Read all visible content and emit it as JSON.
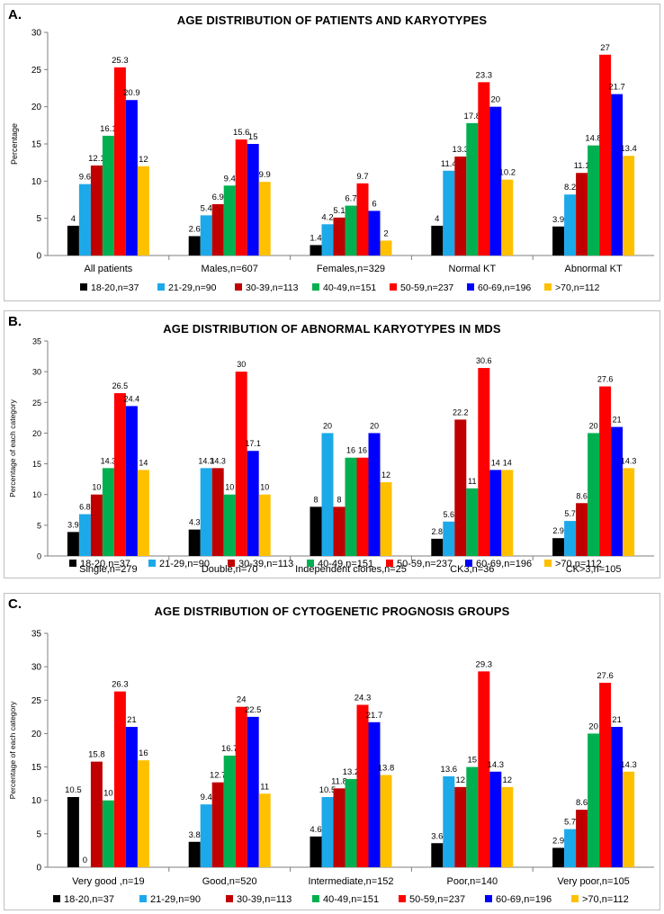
{
  "legend": [
    {
      "label": "18-20,n=37",
      "color": "#000000"
    },
    {
      "label": "21-29,n=90",
      "color": "#1CA9E9"
    },
    {
      "label": "30-39,n=113",
      "color": "#C00000"
    },
    {
      "label": "40-49,n=151",
      "color": "#00B050"
    },
    {
      "label": "50-59,n=237",
      "color": "#FF0000"
    },
    {
      "label": "60-69,n=196",
      "color": "#0000FF"
    },
    {
      "label": ">70,n=112",
      "color": "#FFC000"
    }
  ],
  "chart_data": [
    {
      "panel": "A.",
      "type": "bar",
      "title": "AGE DISTRIBUTION OF PATIENTS AND KARYOTYPES",
      "ylabel": "Percentage",
      "ylim": [
        0,
        30
      ],
      "yticks": [
        0,
        5,
        10,
        15,
        20,
        25,
        30
      ],
      "categories": [
        "All patients",
        "Males,n=607",
        "Females,n=329",
        "Normal KT",
        "Abnormal KT"
      ],
      "series": [
        {
          "name": "18-20,n=37",
          "values": [
            4,
            2.6,
            1.4,
            4,
            3.9
          ],
          "labels": [
            "4",
            "2.6",
            "1.4",
            "4",
            "3.9"
          ]
        },
        {
          "name": "21-29,n=90",
          "values": [
            9.6,
            5.4,
            4.2,
            11.4,
            8.2
          ],
          "labels": [
            "9.6",
            "5.4",
            "4.2",
            "11.4",
            "8.2"
          ]
        },
        {
          "name": "30-39,n=113",
          "values": [
            12.1,
            6.9,
            5.1,
            13.3,
            11.1
          ],
          "labels": [
            "12.1",
            "6.9",
            "5.1",
            "13.3",
            "11.1"
          ]
        },
        {
          "name": "40-49,n=151",
          "values": [
            16.1,
            9.4,
            6.7,
            17.8,
            14.8
          ],
          "labels": [
            "16.1",
            "9.4",
            "6.7",
            "17.8",
            "14.8"
          ]
        },
        {
          "name": "50-59,n=237",
          "values": [
            25.3,
            15.6,
            9.7,
            23.3,
            27
          ],
          "labels": [
            "25.3",
            "15.6",
            "9.7",
            "23.3",
            "27"
          ]
        },
        {
          "name": "60-69,n=196",
          "values": [
            20.9,
            15,
            6,
            20,
            21.7
          ],
          "labels": [
            "20.9",
            "15",
            "6",
            "20",
            "21.7"
          ]
        },
        {
          "name": ">70,n=112",
          "values": [
            12,
            9.9,
            2,
            10.2,
            13.4
          ],
          "labels": [
            "12",
            "9.9",
            "2",
            "10.2",
            "13.4"
          ]
        }
      ]
    },
    {
      "panel": "B.",
      "type": "bar",
      "title": "AGE DISTRIBUTION OF ABNORMAL KARYOTYPES IN MDS",
      "ylabel": "Percentage of each category",
      "ylim": [
        0,
        35
      ],
      "yticks": [
        0,
        5,
        10,
        15,
        20,
        25,
        30,
        35
      ],
      "categories": [
        "Single,n=279",
        "Double,n=70",
        "Independent clones,n=25",
        "CK3,n=36",
        "CK>3,n=105"
      ],
      "series": [
        {
          "name": "18-20,n=37",
          "values": [
            3.9,
            4.3,
            8,
            2.8,
            2.9
          ],
          "labels": [
            "3.9",
            "4.3",
            "8",
            "2.8",
            "2.9"
          ]
        },
        {
          "name": "21-29,n=90",
          "values": [
            6.8,
            14.3,
            20,
            5.6,
            5.7
          ],
          "labels": [
            "6.8",
            "14.3",
            "20",
            "5.6",
            "5.7"
          ]
        },
        {
          "name": "30-39,n=113",
          "values": [
            10,
            14.3,
            8,
            22.2,
            8.6
          ],
          "labels": [
            "10",
            "14.3",
            "8",
            "22.2",
            "8.6"
          ]
        },
        {
          "name": "40-49,n=151",
          "values": [
            14.3,
            10,
            16,
            11,
            20
          ],
          "labels": [
            "14.3",
            "10",
            "16",
            "11",
            "20"
          ]
        },
        {
          "name": "50-59,n=237",
          "values": [
            26.5,
            30,
            16,
            30.6,
            27.6
          ],
          "labels": [
            "26.5",
            "30",
            "16",
            "30.6",
            "27.6"
          ]
        },
        {
          "name": "60-69,n=196",
          "values": [
            24.4,
            17.1,
            20,
            14,
            21
          ],
          "labels": [
            "24.4",
            "17.1",
            "20",
            "14",
            "21"
          ]
        },
        {
          "name": ">70,n=112",
          "values": [
            14,
            10,
            12,
            14,
            14.3
          ],
          "labels": [
            "14",
            "10",
            "12",
            "14",
            "14.3"
          ]
        }
      ]
    },
    {
      "panel": "C.",
      "type": "bar",
      "title": "AGE DISTRIBUTION OF CYTOGENETIC PROGNOSIS GROUPS",
      "ylabel": "Percentage of each category",
      "ylim": [
        0,
        35
      ],
      "yticks": [
        0,
        5,
        10,
        15,
        20,
        25,
        30,
        35
      ],
      "categories": [
        "Very good ,n=19",
        "Good,n=520",
        "Intermediate,n=152",
        "Poor,n=140",
        "Very poor,n=105"
      ],
      "series": [
        {
          "name": "18-20,n=37",
          "values": [
            10.5,
            3.8,
            4.6,
            3.6,
            2.9
          ],
          "labels": [
            "10.5",
            "3.8",
            "4.6",
            "3.6",
            "2.9"
          ]
        },
        {
          "name": "21-29,n=90",
          "values": [
            0,
            9.4,
            10.5,
            13.6,
            5.7
          ],
          "labels": [
            "0",
            "9.4",
            "10.5",
            "13.6",
            "5.7"
          ]
        },
        {
          "name": "30-39,n=113",
          "values": [
            15.8,
            12.7,
            11.8,
            12,
            8.6
          ],
          "labels": [
            "15.8",
            "12.7",
            "11.8",
            "12",
            "8.6"
          ]
        },
        {
          "name": "40-49,n=151",
          "values": [
            10,
            16.7,
            13.2,
            15,
            20
          ],
          "labels": [
            "10",
            "16.7",
            "13.2",
            "15",
            "20"
          ]
        },
        {
          "name": "50-59,n=237",
          "values": [
            26.3,
            24,
            24.3,
            29.3,
            27.6
          ],
          "labels": [
            "26.3",
            "24",
            "24.3",
            "29.3",
            "27.6"
          ]
        },
        {
          "name": "60-69,n=196",
          "values": [
            21,
            22.5,
            21.7,
            14.3,
            21
          ],
          "labels": [
            "21",
            "22.5",
            "21.7",
            "14.3",
            "21"
          ]
        },
        {
          "name": ">70,n=112",
          "values": [
            16,
            11,
            13.8,
            12,
            14.3
          ],
          "labels": [
            "16",
            "11",
            "13.8",
            "12",
            "14.3"
          ]
        }
      ]
    }
  ]
}
